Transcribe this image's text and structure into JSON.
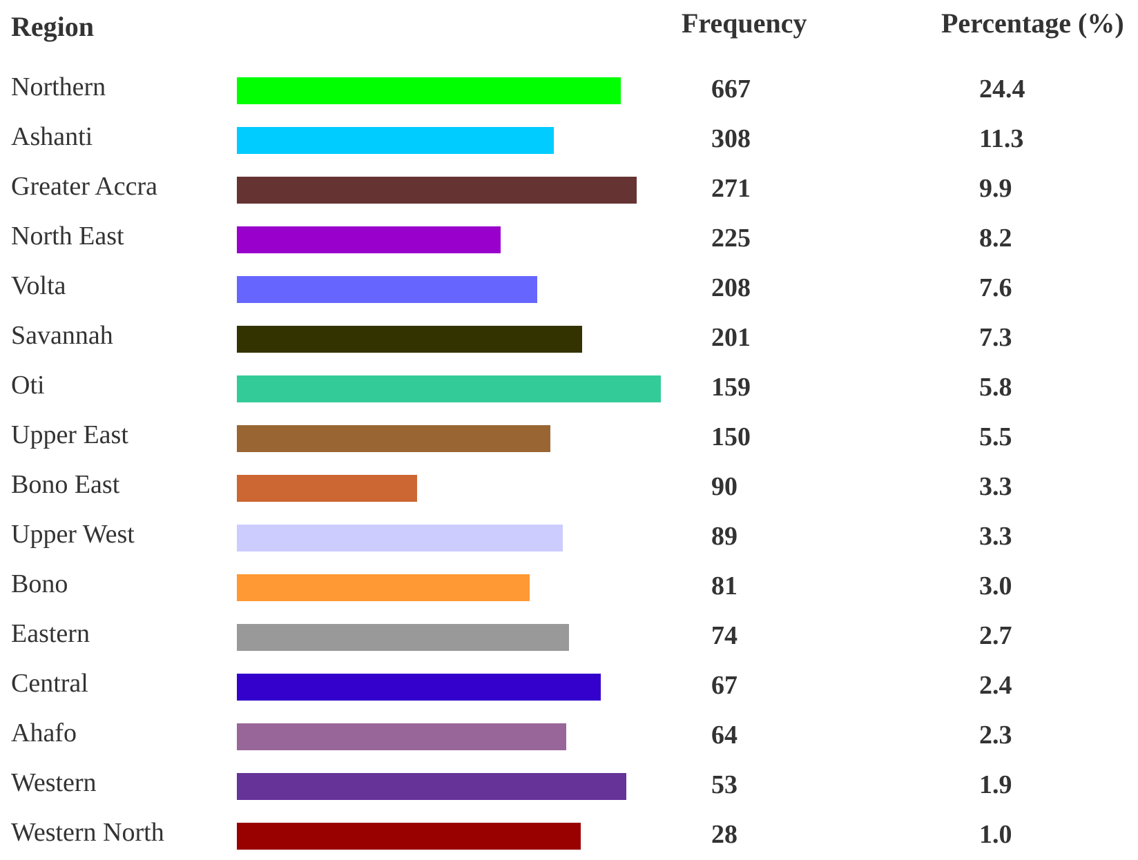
{
  "headers": {
    "region": "Region",
    "frequency": "Frequency",
    "percentage": "Percentage (%)"
  },
  "chart_data": {
    "type": "table",
    "columns": [
      "Region",
      "Frequency",
      "Percentage (%)"
    ],
    "rows": [
      {
        "region": "Northern",
        "frequency": "667",
        "percentage": "24.4",
        "color": "#00ff00",
        "bar_fraction": 0.905
      },
      {
        "region": "Ashanti",
        "frequency": "308",
        "percentage": "11.3",
        "color": "#00ccff",
        "bar_fraction": 0.747
      },
      {
        "region": "Greater Accra",
        "frequency": "271",
        "percentage": "9.9",
        "color": "#663333",
        "bar_fraction": 0.943
      },
      {
        "region": "North East",
        "frequency": "225",
        "percentage": "8.2",
        "color": "#9900cc",
        "bar_fraction": 0.622
      },
      {
        "region": "Volta",
        "frequency": "208",
        "percentage": "7.6",
        "color": "#6666ff",
        "bar_fraction": 0.708
      },
      {
        "region": "Savannah",
        "frequency": "201",
        "percentage": "7.3",
        "color": "#333300",
        "bar_fraction": 0.815
      },
      {
        "region": "Oti",
        "frequency": "159",
        "percentage": "5.8",
        "color": "#33cc99",
        "bar_fraction": 1.0
      },
      {
        "region": "Upper East",
        "frequency": "150",
        "percentage": "5.5",
        "color": "#996633",
        "bar_fraction": 0.739
      },
      {
        "region": "Bono East",
        "frequency": "90",
        "percentage": "3.3",
        "color": "#cc6633",
        "bar_fraction": 0.425
      },
      {
        "region": "Upper West",
        "frequency": "89",
        "percentage": "3.3",
        "color": "#ccccff",
        "bar_fraction": 0.768
      },
      {
        "region": "Bono",
        "frequency": "81",
        "percentage": "3.0",
        "color": "#ff9933",
        "bar_fraction": 0.691
      },
      {
        "region": "Eastern",
        "frequency": "74",
        "percentage": "2.7",
        "color": "#999999",
        "bar_fraction": 0.784
      },
      {
        "region": "Central",
        "frequency": "67",
        "percentage": "2.4",
        "color": "#3300cc",
        "bar_fraction": 0.858
      },
      {
        "region": "Ahafo",
        "frequency": "64",
        "percentage": "2.3",
        "color": "#996699",
        "bar_fraction": 0.777
      },
      {
        "region": "Western",
        "frequency": "53",
        "percentage": "1.9",
        "color": "#663399",
        "bar_fraction": 0.918
      },
      {
        "region": "Western North",
        "frequency": "28",
        "percentage": "1.0",
        "color": "#990000",
        "bar_fraction": 0.811
      }
    ]
  }
}
